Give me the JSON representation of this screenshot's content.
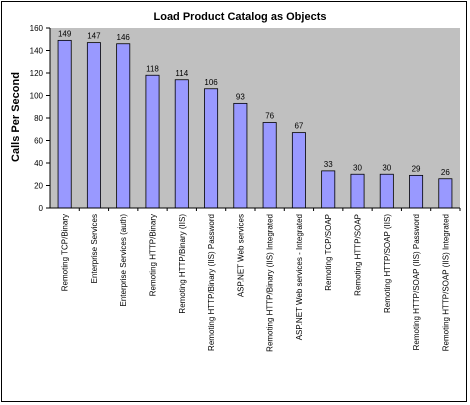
{
  "chart_data": {
    "type": "bar",
    "title": "Load Product Catalog as Objects",
    "xlabel": "",
    "ylabel": "Calls Per Second",
    "ylim": [
      0,
      160
    ],
    "yticks": [
      0,
      20,
      40,
      60,
      80,
      100,
      120,
      140,
      160
    ],
    "grid": false,
    "legend": "none",
    "categories": [
      "Remoting TCP/Binary",
      "Enterprise Services",
      "Enterprise Services (auth)",
      "Remoting HTTP/Binary",
      "Remoting HTTP/Binary (IIS)",
      "Remoting HTTP/Binary (IIS) Password",
      "ASP.NET Web services",
      "Remoting HTTP/Binary (IIS) Integrated",
      "ASP.NET Web services - Integrated",
      "Remoting TCP/SOAP",
      "Remoting HTTP/SOAP",
      "Remoting HTTP/SOAP (IIS)",
      "Remoting HTTP/SOAP (IIS) Password",
      "Remoting HTTP/SOAP (IIS) Integrated"
    ],
    "values": [
      149,
      147,
      146,
      118,
      114,
      106,
      93,
      76,
      67,
      33,
      30,
      30,
      29,
      26
    ],
    "colors": {
      "plot_background": "#c0c0c0",
      "bar_fill": "#9999ff",
      "bar_stroke": "#000000"
    }
  }
}
